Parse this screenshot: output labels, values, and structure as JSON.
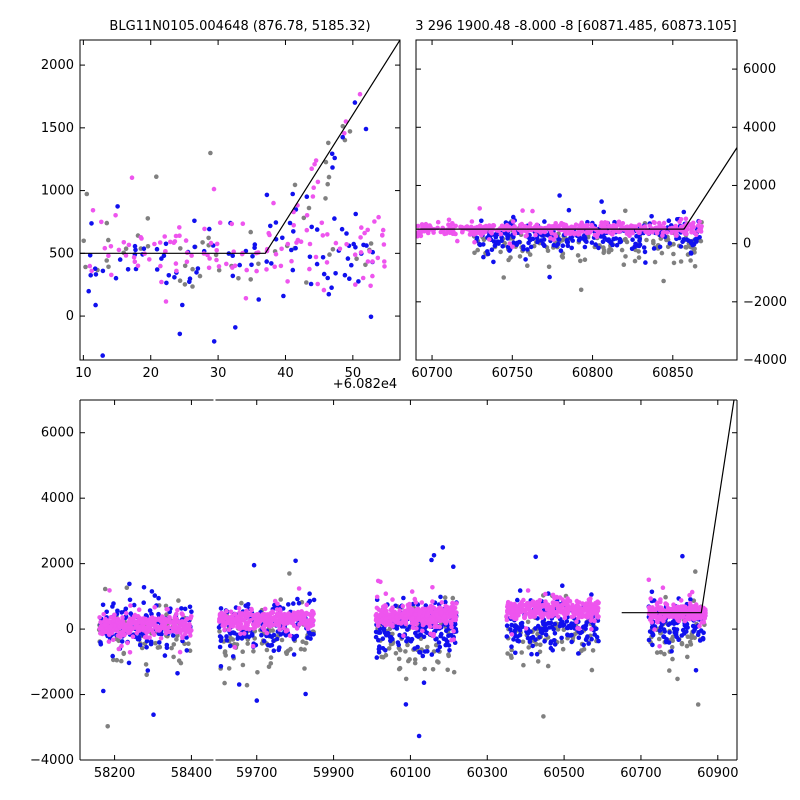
{
  "colors": {
    "gray_band": "#808080",
    "blue_band": "#1010ee",
    "pink_band": "#ee55ee",
    "fit_line": "#000000",
    "axes": "#000000",
    "background": "#ffffff"
  },
  "chart_data": [
    {
      "id": "top-left",
      "type": "scatter",
      "title": "BLG11N0105.004648 (876.78, 5185.32)",
      "xlim": [
        9.5,
        57
      ],
      "ylim": [
        -350,
        2200
      ],
      "x_ticks": [
        10,
        20,
        30,
        40,
        50
      ],
      "x_tick_labels": [
        "10",
        "20",
        "30",
        "40",
        "50"
      ],
      "y_ticks": [
        0,
        500,
        1000,
        1500,
        2000
      ],
      "y_tick_labels": [
        "0",
        "500",
        "1000",
        "1500",
        "2000"
      ],
      "y_axis_side": "left",
      "x_offset_label": "+6.082e4",
      "fit_line": [
        [
          9.5,
          500
        ],
        [
          37,
          500
        ],
        [
          57,
          2200
        ]
      ],
      "series": [
        {
          "name": "gray",
          "color": "gray_band",
          "segments": [
            {
              "x": [
                10,
                53
              ],
              "center": 500,
              "spread": 520,
              "n": 45,
              "seed": 11
            }
          ]
        },
        {
          "name": "blue",
          "color": "blue_band",
          "segments": [
            {
              "x": [
                10,
                53
              ],
              "center": 450,
              "spread": 600,
              "n": 95,
              "seed": 12
            }
          ]
        },
        {
          "name": "pink",
          "color": "pink_band",
          "segments": [
            {
              "x": [
                9.6,
                55
              ],
              "center": 550,
              "spread": 520,
              "n": 120,
              "seed": 13
            }
          ]
        }
      ],
      "rising_points": {
        "x": [
          40,
          53
        ],
        "color_cycle": [
          "pink_band",
          "blue_band",
          "gray_band"
        ],
        "n": 30,
        "seed": 14
      }
    },
    {
      "id": "top-right",
      "type": "scatter",
      "title": "3 296 1900.48 -8.000 -8 [60871.485, 60873.105]",
      "xlim": [
        60690,
        60890
      ],
      "ylim": [
        -4000,
        7000
      ],
      "x_ticks": [
        60700,
        60750,
        60800,
        60850
      ],
      "x_tick_labels": [
        "60700",
        "60750",
        "60800",
        "60850"
      ],
      "y_ticks": [
        -4000,
        -2000,
        0,
        2000,
        4000,
        6000
      ],
      "y_tick_labels": [
        "−4000",
        "−2000",
        "0",
        "2000",
        "4000",
        "6000"
      ],
      "y_axis_side": "right",
      "fit_line": [
        [
          60690,
          500
        ],
        [
          60857,
          500
        ],
        [
          60890,
          3300
        ]
      ],
      "series": [
        {
          "name": "gray",
          "color": "gray_band",
          "segments": [
            {
              "x": [
                60725,
                60868
              ],
              "center": 0,
              "spread": 1100,
              "n": 150,
              "seed": 21
            }
          ]
        },
        {
          "name": "blue",
          "color": "blue_band",
          "segments": [
            {
              "x": [
                60725,
                60868
              ],
              "center": 300,
              "spread": 900,
              "n": 260,
              "seed": 22
            }
          ]
        },
        {
          "name": "pink",
          "color": "pink_band",
          "segments": [
            {
              "x": [
                60690,
                60868
              ],
              "center": 500,
              "spread": 350,
              "n": 420,
              "seed": 23
            }
          ]
        }
      ]
    },
    {
      "id": "bottom",
      "type": "scatter",
      "title": "",
      "xlim": [
        58110,
        60950
      ],
      "ylim": [
        -4000,
        7000
      ],
      "x_break": [
        58460,
        59590
      ],
      "x_ticks": [
        58200,
        58400,
        59700,
        59900,
        60100,
        60300,
        60500,
        60700,
        60900
      ],
      "x_tick_labels": [
        "58200",
        "58400",
        "59700",
        "59900",
        "60100",
        "60300",
        "60500",
        "60700",
        "60900"
      ],
      "y_ticks": [
        -4000,
        -2000,
        0,
        2000,
        4000,
        6000
      ],
      "y_tick_labels": [
        "−4000",
        "−2000",
        "0",
        "2000",
        "4000",
        "6000"
      ],
      "y_axis_side": "left",
      "fit_line": [
        [
          60650,
          500
        ],
        [
          60857,
          500
        ],
        [
          60950,
          7600
        ]
      ],
      "series": [
        {
          "name": "gray",
          "color": "gray_band",
          "segments": [
            {
              "x": [
                58160,
                58400
              ],
              "center": -200,
              "spread": 1500,
              "n": 70,
              "seed": 31
            },
            {
              "x": [
                59600,
                59850
              ],
              "center": -200,
              "spread": 1500,
              "n": 80,
              "seed": 32
            },
            {
              "x": [
                60010,
                60220
              ],
              "center": -300,
              "spread": 1600,
              "n": 90,
              "seed": 33
            },
            {
              "x": [
                60350,
                60590
              ],
              "center": -200,
              "spread": 1500,
              "n": 80,
              "seed": 34
            },
            {
              "x": [
                60720,
                60868
              ],
              "center": -100,
              "spread": 1400,
              "n": 60,
              "seed": 35
            }
          ]
        },
        {
          "name": "blue",
          "color": "blue_band",
          "segments": [
            {
              "x": [
                58160,
                58400
              ],
              "center": 100,
              "spread": 1200,
              "n": 150,
              "seed": 41
            },
            {
              "x": [
                59600,
                59850
              ],
              "center": 100,
              "spread": 1200,
              "n": 170,
              "seed": 42
            },
            {
              "x": [
                60010,
                60220
              ],
              "center": 0,
              "spread": 1400,
              "n": 200,
              "seed": 43
            },
            {
              "x": [
                60350,
                60590
              ],
              "center": 100,
              "spread": 1300,
              "n": 170,
              "seed": 44
            },
            {
              "x": [
                60720,
                60868
              ],
              "center": 200,
              "spread": 1200,
              "n": 130,
              "seed": 45
            }
          ]
        },
        {
          "name": "pink",
          "color": "pink_band",
          "segments": [
            {
              "x": [
                58160,
                58400
              ],
              "center": 100,
              "spread": 500,
              "n": 320,
              "seed": 51
            },
            {
              "x": [
                59600,
                59850
              ],
              "center": 300,
              "spread": 500,
              "n": 340,
              "seed": 52
            },
            {
              "x": [
                60010,
                60220
              ],
              "center": 400,
              "spread": 500,
              "n": 380,
              "seed": 53
            },
            {
              "x": [
                60350,
                60590
              ],
              "center": 600,
              "spread": 500,
              "n": 340,
              "seed": 54
            },
            {
              "x": [
                60720,
                60868
              ],
              "center": 500,
              "spread": 450,
              "n": 240,
              "seed": 55
            }
          ]
        }
      ]
    }
  ]
}
